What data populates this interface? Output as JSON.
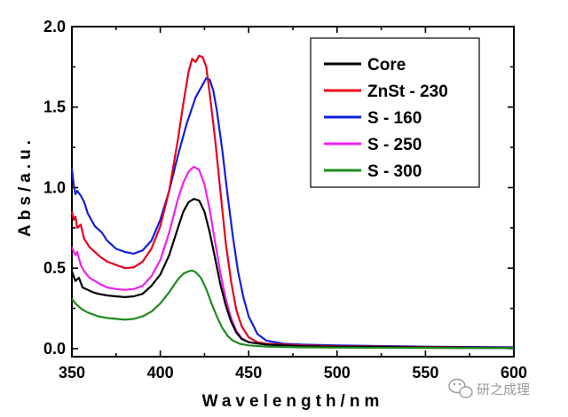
{
  "chart_data": {
    "type": "line",
    "xlabel": "Wavelength/nm",
    "ylabel": "Abs/a.u.",
    "xlim": [
      350,
      600
    ],
    "ylim": [
      -0.05,
      2.0
    ],
    "x_ticks": [
      350,
      400,
      450,
      500,
      550,
      600
    ],
    "y_ticks": [
      0.0,
      0.5,
      1.0,
      1.5,
      2.0
    ],
    "x_tick_labels": [
      "350",
      "400",
      "450",
      "500",
      "550",
      "600"
    ],
    "y_tick_labels": [
      "0.0",
      "0.5",
      "1.0",
      "1.5",
      "2.0"
    ],
    "grid": false,
    "legend_position": "top-right",
    "series": [
      {
        "name": "Core",
        "color": "#000000",
        "points": [
          [
            350,
            0.48
          ],
          [
            352,
            0.42
          ],
          [
            354,
            0.44
          ],
          [
            356,
            0.38
          ],
          [
            358,
            0.37
          ],
          [
            360,
            0.36
          ],
          [
            362,
            0.35
          ],
          [
            365,
            0.34
          ],
          [
            370,
            0.33
          ],
          [
            375,
            0.325
          ],
          [
            380,
            0.32
          ],
          [
            385,
            0.325
          ],
          [
            390,
            0.34
          ],
          [
            395,
            0.39
          ],
          [
            400,
            0.46
          ],
          [
            405,
            0.58
          ],
          [
            410,
            0.75
          ],
          [
            413,
            0.85
          ],
          [
            416,
            0.91
          ],
          [
            419,
            0.93
          ],
          [
            422,
            0.92
          ],
          [
            425,
            0.85
          ],
          [
            428,
            0.72
          ],
          [
            431,
            0.56
          ],
          [
            434,
            0.4
          ],
          [
            437,
            0.27
          ],
          [
            440,
            0.17
          ],
          [
            443,
            0.1
          ],
          [
            446,
            0.06
          ],
          [
            450,
            0.04
          ],
          [
            460,
            0.025
          ],
          [
            480,
            0.015
          ],
          [
            500,
            0.012
          ],
          [
            550,
            0.008
          ],
          [
            600,
            0.005
          ]
        ]
      },
      {
        "name": "ZnSt - 230",
        "color": "#e8001c",
        "points": [
          [
            350,
            0.85
          ],
          [
            351,
            0.8
          ],
          [
            352,
            0.82
          ],
          [
            353,
            0.75
          ],
          [
            355,
            0.77
          ],
          [
            357,
            0.68
          ],
          [
            360,
            0.63
          ],
          [
            363,
            0.6
          ],
          [
            366,
            0.57
          ],
          [
            370,
            0.54
          ],
          [
            375,
            0.52
          ],
          [
            380,
            0.5
          ],
          [
            385,
            0.505
          ],
          [
            390,
            0.54
          ],
          [
            395,
            0.62
          ],
          [
            400,
            0.76
          ],
          [
            405,
            0.98
          ],
          [
            410,
            1.3
          ],
          [
            413,
            1.52
          ],
          [
            416,
            1.72
          ],
          [
            418,
            1.8
          ],
          [
            420,
            1.78
          ],
          [
            422,
            1.82
          ],
          [
            424,
            1.81
          ],
          [
            426,
            1.75
          ],
          [
            428,
            1.58
          ],
          [
            431,
            1.3
          ],
          [
            434,
            0.98
          ],
          [
            437,
            0.66
          ],
          [
            440,
            0.42
          ],
          [
            443,
            0.24
          ],
          [
            446,
            0.14
          ],
          [
            450,
            0.07
          ],
          [
            455,
            0.04
          ],
          [
            460,
            0.03
          ],
          [
            480,
            0.02
          ],
          [
            500,
            0.015
          ],
          [
            550,
            0.01
          ],
          [
            600,
            0.005
          ]
        ]
      },
      {
        "name": "S - 160",
        "color": "#1020d8",
        "points": [
          [
            350,
            1.12
          ],
          [
            351,
            1.02
          ],
          [
            352,
            0.96
          ],
          [
            353,
            0.98
          ],
          [
            355,
            0.95
          ],
          [
            357,
            0.91
          ],
          [
            359,
            0.84
          ],
          [
            361,
            0.8
          ],
          [
            363,
            0.76
          ],
          [
            365,
            0.74
          ],
          [
            367,
            0.72
          ],
          [
            370,
            0.67
          ],
          [
            375,
            0.62
          ],
          [
            380,
            0.6
          ],
          [
            385,
            0.59
          ],
          [
            390,
            0.61
          ],
          [
            395,
            0.67
          ],
          [
            400,
            0.8
          ],
          [
            405,
            0.98
          ],
          [
            410,
            1.2
          ],
          [
            415,
            1.4
          ],
          [
            420,
            1.56
          ],
          [
            424,
            1.64
          ],
          [
            426,
            1.68
          ],
          [
            428,
            1.67
          ],
          [
            430,
            1.6
          ],
          [
            432,
            1.48
          ],
          [
            435,
            1.24
          ],
          [
            438,
            0.96
          ],
          [
            441,
            0.7
          ],
          [
            444,
            0.48
          ],
          [
            447,
            0.32
          ],
          [
            450,
            0.2
          ],
          [
            455,
            0.09
          ],
          [
            460,
            0.05
          ],
          [
            470,
            0.03
          ],
          [
            480,
            0.025
          ],
          [
            500,
            0.02
          ],
          [
            550,
            0.012
          ],
          [
            600,
            0.008
          ]
        ]
      },
      {
        "name": "S - 250",
        "color": "#f020f0",
        "points": [
          [
            350,
            0.63
          ],
          [
            352,
            0.58
          ],
          [
            353,
            0.6
          ],
          [
            355,
            0.52
          ],
          [
            357,
            0.48
          ],
          [
            360,
            0.44
          ],
          [
            363,
            0.42
          ],
          [
            366,
            0.4
          ],
          [
            370,
            0.38
          ],
          [
            375,
            0.37
          ],
          [
            380,
            0.365
          ],
          [
            385,
            0.37
          ],
          [
            390,
            0.39
          ],
          [
            395,
            0.45
          ],
          [
            400,
            0.55
          ],
          [
            405,
            0.72
          ],
          [
            410,
            0.93
          ],
          [
            413,
            1.03
          ],
          [
            416,
            1.1
          ],
          [
            419,
            1.13
          ],
          [
            422,
            1.11
          ],
          [
            425,
            1.02
          ],
          [
            428,
            0.86
          ],
          [
            431,
            0.66
          ],
          [
            434,
            0.47
          ],
          [
            437,
            0.31
          ],
          [
            440,
            0.19
          ],
          [
            443,
            0.11
          ],
          [
            446,
            0.065
          ],
          [
            450,
            0.04
          ],
          [
            460,
            0.025
          ],
          [
            480,
            0.015
          ],
          [
            500,
            0.01
          ],
          [
            550,
            0.007
          ],
          [
            600,
            0.004
          ]
        ]
      },
      {
        "name": "S - 300",
        "color": "#1e8a1e",
        "points": [
          [
            350,
            0.31
          ],
          [
            352,
            0.28
          ],
          [
            355,
            0.25
          ],
          [
            358,
            0.23
          ],
          [
            360,
            0.22
          ],
          [
            365,
            0.2
          ],
          [
            370,
            0.19
          ],
          [
            375,
            0.185
          ],
          [
            380,
            0.18
          ],
          [
            385,
            0.185
          ],
          [
            390,
            0.2
          ],
          [
            395,
            0.23
          ],
          [
            400,
            0.28
          ],
          [
            405,
            0.35
          ],
          [
            410,
            0.43
          ],
          [
            413,
            0.465
          ],
          [
            416,
            0.48
          ],
          [
            418,
            0.485
          ],
          [
            420,
            0.475
          ],
          [
            423,
            0.44
          ],
          [
            426,
            0.37
          ],
          [
            429,
            0.28
          ],
          [
            432,
            0.2
          ],
          [
            435,
            0.13
          ],
          [
            438,
            0.08
          ],
          [
            441,
            0.05
          ],
          [
            445,
            0.03
          ],
          [
            450,
            0.02
          ],
          [
            460,
            0.012
          ],
          [
            480,
            0.008
          ],
          [
            500,
            0.006
          ],
          [
            550,
            0.004
          ],
          [
            600,
            0.003
          ]
        ]
      }
    ]
  },
  "watermark": {
    "text": "研之成理",
    "icon": "wechat-icon"
  }
}
